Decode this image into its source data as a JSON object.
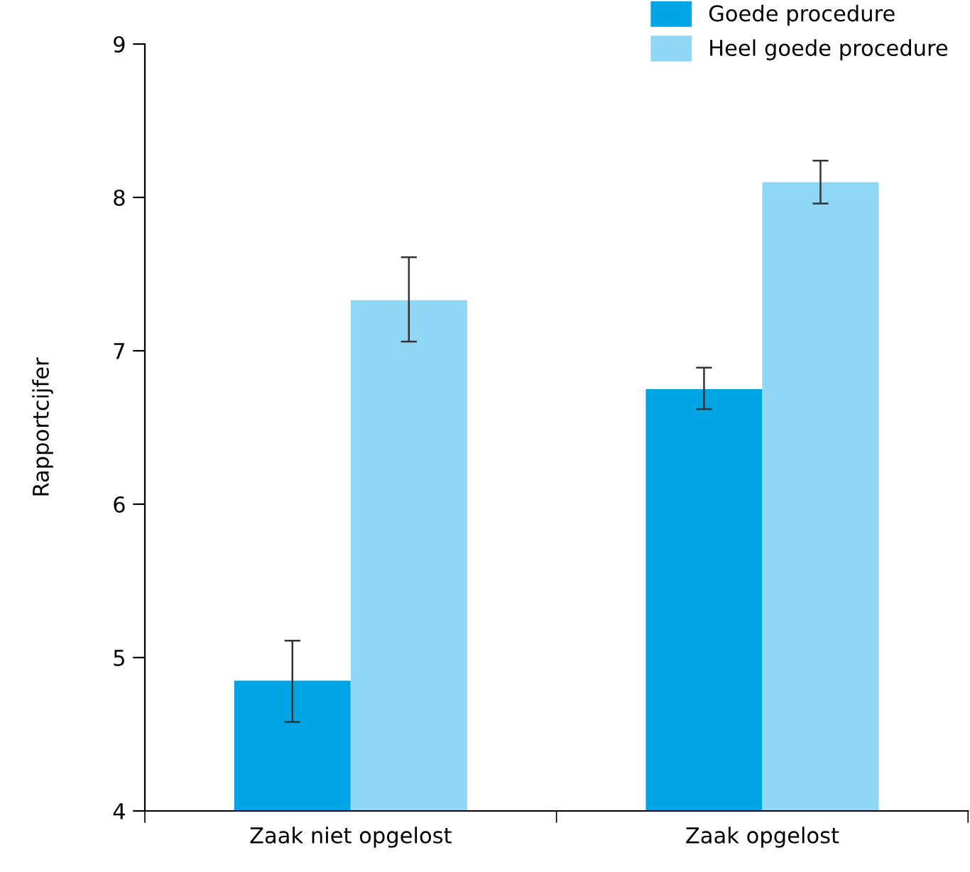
{
  "chart_data": {
    "type": "bar",
    "ylabel": "Rapportcijfer",
    "categories": [
      "Zaak niet opgelost",
      "Zaak opgelost"
    ],
    "series": [
      {
        "name": "Goede procedure",
        "color": "#00a5e6",
        "values": [
          4.85,
          6.75
        ],
        "errors": [
          [
            4.58,
            5.11
          ],
          [
            6.62,
            6.89
          ]
        ]
      },
      {
        "name": "Heel goede procedure",
        "color": "#8fd7f5",
        "values": [
          7.33,
          8.1
        ],
        "errors": [
          [
            7.06,
            7.61
          ],
          [
            7.96,
            8.24
          ]
        ]
      }
    ],
    "ylim": [
      4,
      9
    ],
    "yticks": [
      4,
      5,
      6,
      7,
      8,
      9
    ],
    "grid": false,
    "legend": "top right"
  }
}
